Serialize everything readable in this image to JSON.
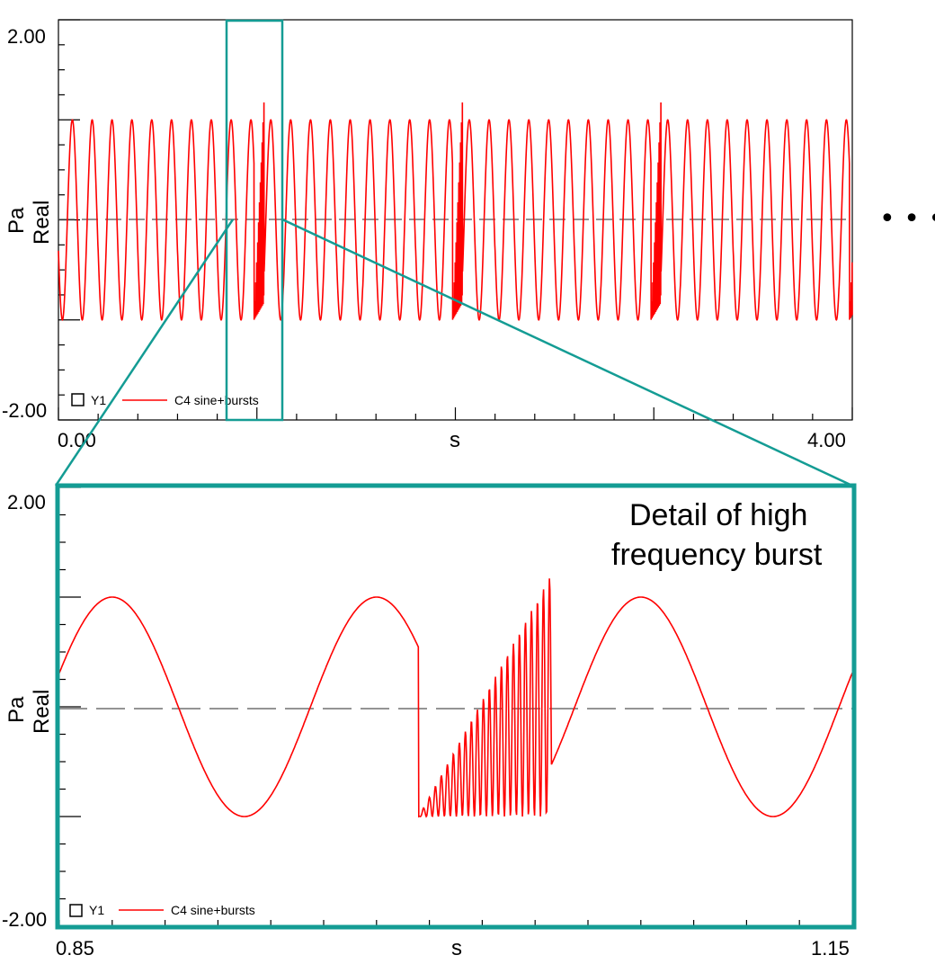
{
  "colors": {
    "signal": "#ff0000",
    "zoom": "#149c94",
    "axis": "#000000",
    "zero_line": "#555555"
  },
  "ellipsis_text": "• • •",
  "detail_caption": [
    "Detail of high",
    "frequency burst"
  ],
  "chart_data": [
    {
      "type": "line",
      "xlabel": "s",
      "ylabel": [
        "Pa",
        "Real"
      ],
      "xlim": [
        0,
        4
      ],
      "ylim": [
        -2,
        2
      ],
      "x_tick_labels": [
        "0.00",
        "s",
        "4.00"
      ],
      "y_tick_labels": [
        "2.00",
        "-2.00"
      ],
      "legend": {
        "box_label": "Y1",
        "series_label": "C4 sine+bursts",
        "position": "bottom-left"
      },
      "grid": false,
      "zero_line": "dashed",
      "series": [
        {
          "name": "C4 sine+bursts",
          "sine_frequency_hz": 10,
          "sine_amplitude": 1,
          "burst_start_times": [
            0.986,
            1.986,
            2.986,
            3.986
          ],
          "burst_duration_s": 0.05,
          "burst_amplitude": 2
        }
      ],
      "zoom_window_x": [
        0.85,
        1.15
      ]
    },
    {
      "type": "line",
      "xlabel": "s",
      "ylabel": [
        "Pa",
        "Real"
      ],
      "xlim": [
        0.85,
        1.15
      ],
      "ylim": [
        -2,
        2
      ],
      "x_tick_labels": [
        "0.85",
        "s",
        "1.15"
      ],
      "y_tick_labels": [
        "2.00",
        "-2.00"
      ],
      "legend": {
        "box_label": "Y1",
        "series_label": "C4 sine+bursts",
        "position": "bottom-left"
      },
      "grid": false,
      "zero_line": "dashed",
      "series": [
        {
          "name": "C4 sine+bursts",
          "sine_frequency_hz": 10,
          "sine_amplitude": 1,
          "burst_start_times": [
            0.986
          ],
          "burst_duration_s": 0.05,
          "burst_amplitude": 2
        }
      ]
    }
  ]
}
